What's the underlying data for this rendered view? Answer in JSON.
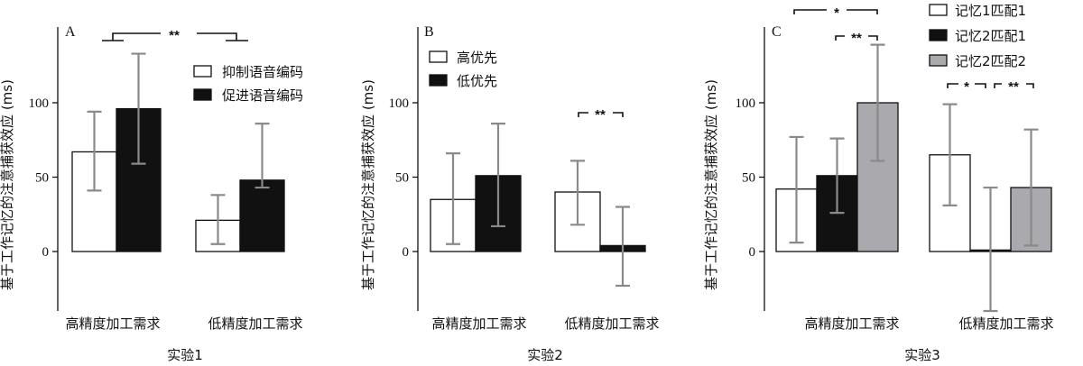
{
  "chart_data": [
    {
      "type": "bar",
      "panel_label": "A",
      "title": "",
      "ylabel": "基于工作记忆的注意捕获效应 (ms)",
      "xlabel": "实验1",
      "ylim": [
        -40,
        150
      ],
      "yticks": [
        "0",
        "50",
        "100"
      ],
      "categories": [
        "高精度加工需求",
        "低精度加工需求"
      ],
      "legend_position": "top-right",
      "series": [
        {
          "name": "抑制语音编码",
          "fill": "#ffffff",
          "values": [
            67,
            21
          ],
          "err_low": [
            41,
            5
          ],
          "err_high": [
            94,
            38
          ]
        },
        {
          "name": "促进语音编码",
          "fill": "#111111",
          "values": [
            96,
            48
          ],
          "err_low": [
            59,
            43
          ],
          "err_high": [
            133,
            86
          ]
        }
      ],
      "significance": [
        {
          "label": "**",
          "type": "between-groups"
        }
      ]
    },
    {
      "type": "bar",
      "panel_label": "B",
      "title": "",
      "ylabel": "基于工作记忆的注意捕获效应 (ms)",
      "xlabel": "实验2",
      "ylim": [
        -40,
        150
      ],
      "yticks": [
        "0",
        "50",
        "100"
      ],
      "categories": [
        "高精度加工需求",
        "低精度加工需求"
      ],
      "legend_position": "top-left",
      "series": [
        {
          "name": "高优先",
          "fill": "#ffffff",
          "values": [
            35,
            40
          ],
          "err_low": [
            5,
            18
          ],
          "err_high": [
            66,
            61
          ]
        },
        {
          "name": "低优先",
          "fill": "#111111",
          "values": [
            51,
            4
          ],
          "err_low": [
            17,
            -23
          ],
          "err_high": [
            86,
            30
          ]
        }
      ],
      "significance": [
        {
          "label": "**",
          "type": "within-group",
          "group": 1,
          "from": 0,
          "to": 1
        }
      ]
    },
    {
      "type": "bar",
      "panel_label": "C",
      "title": "",
      "ylabel": "基于工作记忆的注意捕获效应 (ms)",
      "xlabel": "实验3",
      "ylim": [
        -40,
        150
      ],
      "yticks": [
        "0",
        "50",
        "100"
      ],
      "categories": [
        "高精度加工需求",
        "低精度加工需求"
      ],
      "legend_position": "top-right",
      "series": [
        {
          "name": "记忆1匹配1",
          "fill": "#ffffff",
          "values": [
            42,
            65
          ],
          "err_low": [
            6,
            31
          ],
          "err_high": [
            77,
            99
          ]
        },
        {
          "name": "记忆2匹配1",
          "fill": "#111111",
          "values": [
            51,
            1
          ],
          "err_low": [
            26,
            -40
          ],
          "err_high": [
            76,
            43
          ]
        },
        {
          "name": "记忆2匹配2",
          "fill": "#a9a9ae",
          "values": [
            100,
            43
          ],
          "err_low": [
            61,
            4
          ],
          "err_high": [
            139,
            82
          ]
        }
      ],
      "significance": [
        {
          "label": "*",
          "type": "within-group",
          "group": 0,
          "from": 0,
          "to": 2
        },
        {
          "label": "**",
          "type": "within-group",
          "group": 0,
          "from": 1,
          "to": 2
        },
        {
          "label": "*",
          "type": "within-group",
          "group": 1,
          "from": 0,
          "to": 1
        },
        {
          "label": "**",
          "type": "within-group",
          "group": 1,
          "from": 1,
          "to": 2
        }
      ]
    }
  ]
}
